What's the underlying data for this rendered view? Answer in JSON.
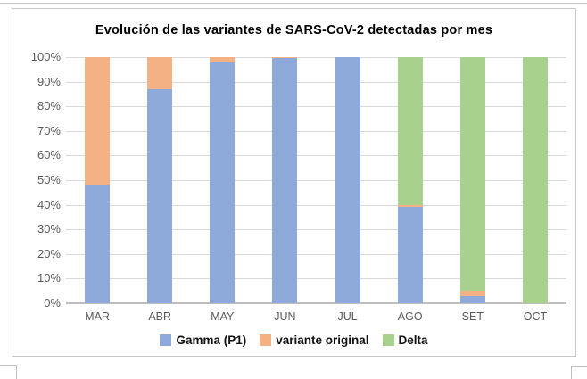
{
  "chart_data": {
    "type": "bar",
    "stacked": true,
    "orientation": "vertical",
    "title": "Evolución de las variantes de SARS-CoV-2 detectadas por mes",
    "categories": [
      "MAR",
      "ABR",
      "MAY",
      "JUN",
      "JUL",
      "AGO",
      "SET",
      "OCT"
    ],
    "series": [
      {
        "name": "Gamma (P1)",
        "color": "#8EAADB",
        "values": [
          48,
          87,
          98,
          99.5,
          100,
          39,
          3,
          0
        ]
      },
      {
        "name": "variante original",
        "color": "#F4B183",
        "values": [
          52,
          13,
          2,
          0.5,
          0,
          1,
          2,
          0
        ]
      },
      {
        "name": "Delta",
        "color": "#A9D18E",
        "values": [
          0,
          0,
          0,
          0,
          0,
          60,
          95,
          100
        ]
      }
    ],
    "ylabel": "",
    "xlabel": "",
    "ylim": [
      0,
      100
    ],
    "y_tick_step": 10,
    "y_tick_labels": [
      "0%",
      "10%",
      "20%",
      "30%",
      "40%",
      "50%",
      "60%",
      "70%",
      "80%",
      "90%",
      "100%"
    ],
    "grid": true,
    "legend_position": "bottom",
    "legend": [
      "Gamma (P1)",
      "variante original",
      "Delta"
    ],
    "colors": {
      "gridline": "#D9D9D9",
      "axis_line": "#BFBFBF",
      "tick_label": "#595959",
      "title": "#000000",
      "frame_border": "#C9C7C7"
    }
  }
}
